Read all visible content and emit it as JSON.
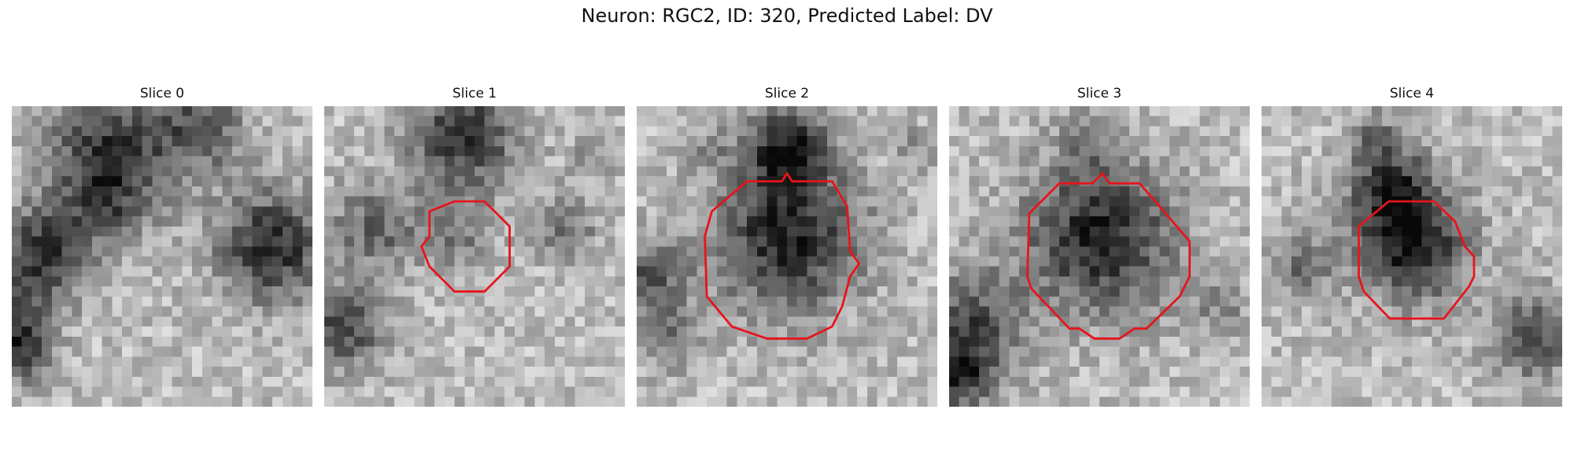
{
  "figure": {
    "title": "Neuron: RGC2, ID: 320, Predicted Label: DV"
  },
  "panels": [
    {
      "title": "Slice 0",
      "has_contour": false
    },
    {
      "title": "Slice 1",
      "has_contour": true
    },
    {
      "title": "Slice 2",
      "has_contour": true
    },
    {
      "title": "Slice 3",
      "has_contour": true
    },
    {
      "title": "Slice 4",
      "has_contour": true
    }
  ],
  "colors": {
    "contour": "#e8141c"
  },
  "image": {
    "colormap": "gray",
    "grid": "30x30"
  }
}
